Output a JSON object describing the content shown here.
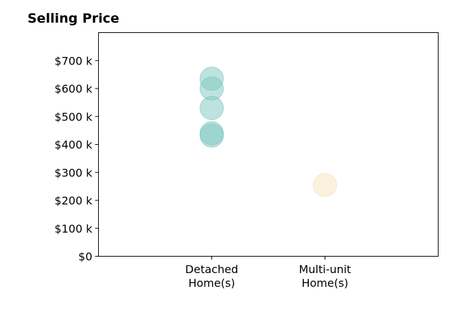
{
  "chart_data": {
    "type": "scatter",
    "title": "Selling Price",
    "xlabel": "",
    "ylabel": "",
    "categories": [
      {
        "line1": "Detached",
        "line2": "Home(s)"
      },
      {
        "line1": "Multi-unit",
        "line2": "Home(s)"
      }
    ],
    "x_range": [
      -1,
      2
    ],
    "ylim": [
      0,
      800000
    ],
    "y_ticks": [
      {
        "value": 0,
        "label": "$0"
      },
      {
        "value": 100000,
        "label": "$100 k"
      },
      {
        "value": 200000,
        "label": "$200 k"
      },
      {
        "value": 300000,
        "label": "$300 k"
      },
      {
        "value": 400000,
        "label": "$400 k"
      },
      {
        "value": 500000,
        "label": "$500 k"
      },
      {
        "value": 600000,
        "label": "$600 k"
      },
      {
        "value": 700000,
        "label": "$700 k"
      }
    ],
    "grid": false,
    "series": [
      {
        "category": "Detached Home(s)",
        "color": "#7ec8c0",
        "values": [
          635000,
          600000,
          530000,
          440000,
          432000
        ]
      },
      {
        "category": "Multi-unit Home(s)",
        "color": "#f5e3bd",
        "values": [
          255000
        ]
      }
    ]
  }
}
